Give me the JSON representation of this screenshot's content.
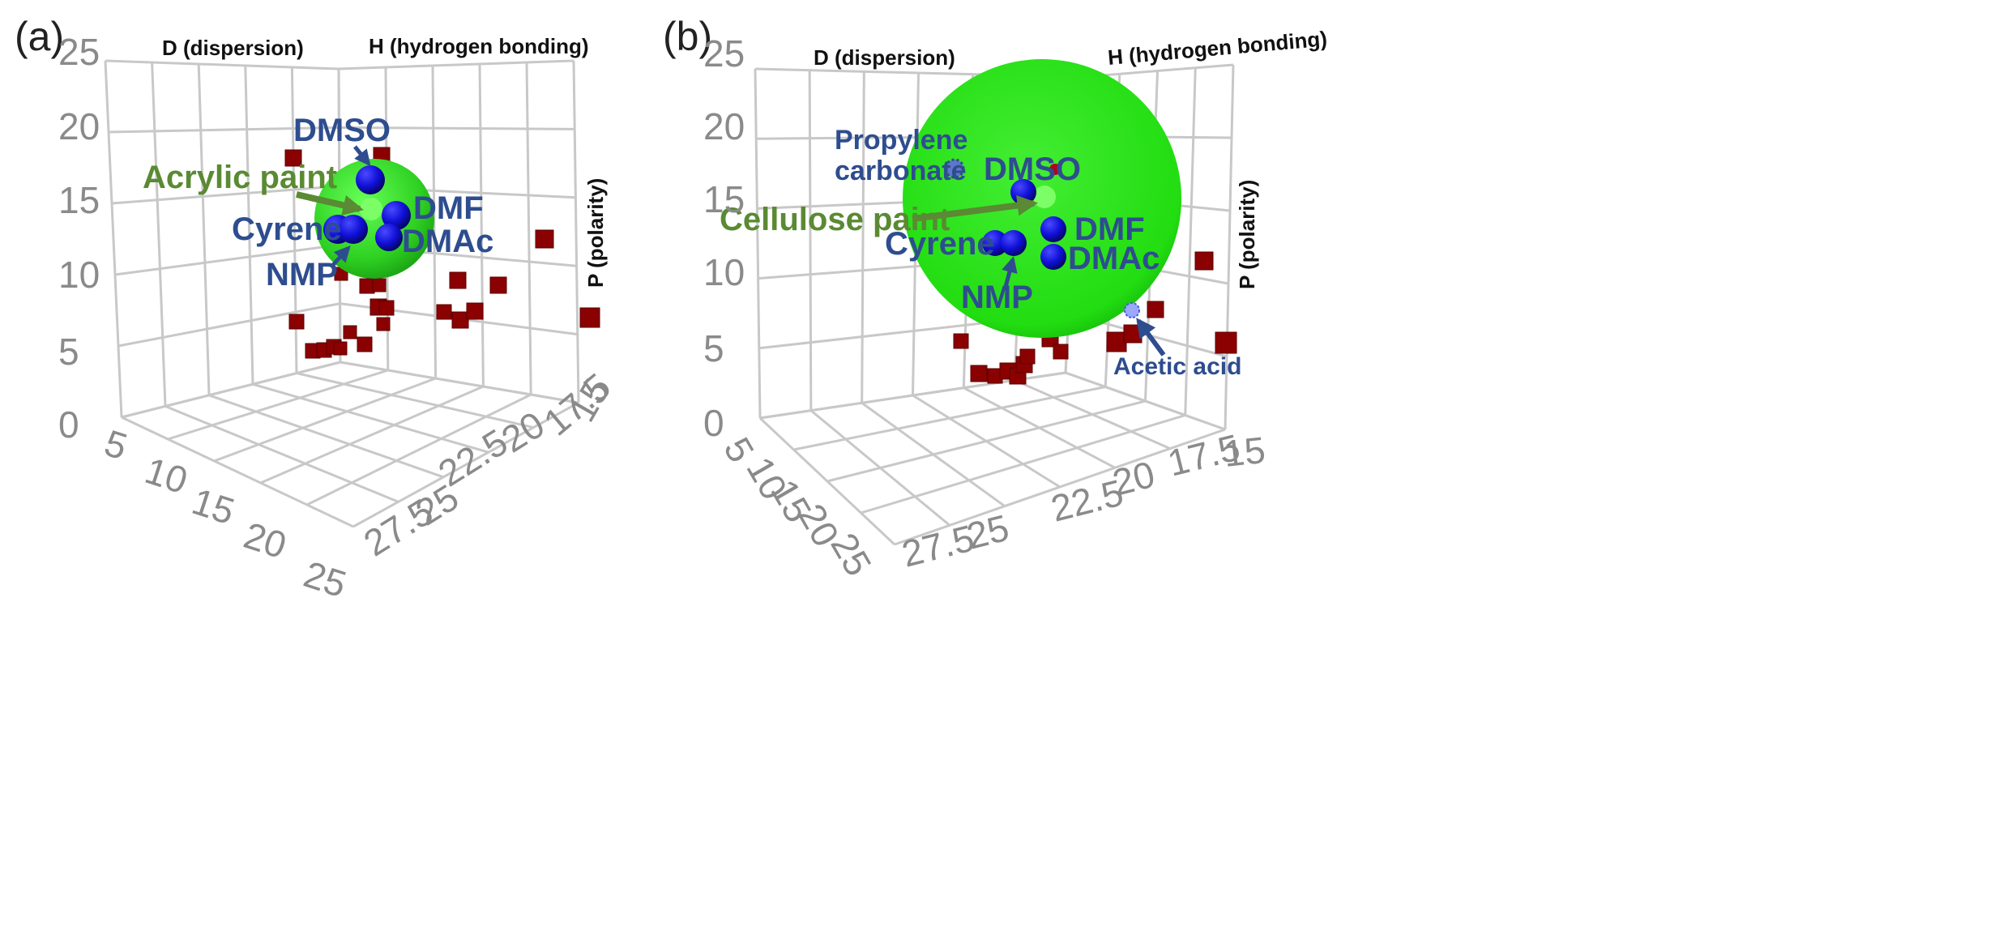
{
  "colors": {
    "grid": "#c8c8c8",
    "solvent_blue": "#1010d8",
    "polymer_red": "#8b0000",
    "sphere_green": "#33dd22",
    "label_blue": "#2e4d8f",
    "label_green": "#5a8a33"
  },
  "chart_data": [
    {
      "type": "scatter",
      "panel_label": "(a)",
      "axes": {
        "vertical_ticks": [
          "0",
          "5",
          "10",
          "15",
          "20",
          "25"
        ],
        "left_floor_ticks": [
          "5",
          "10",
          "15",
          "20",
          "25"
        ],
        "right_floor_ticks": [
          "27.5",
          "25",
          "22.5",
          "20",
          "17.5",
          "15"
        ],
        "axis_names": [
          "D (dispersion)",
          "H (hydrogen bonding)",
          "P (polarity)"
        ]
      },
      "sphere": {
        "name": "Acrylic paint",
        "relative_size": "small"
      },
      "solvents": [
        {
          "name": "DMSO"
        },
        {
          "name": "DMF"
        },
        {
          "name": "DMAc"
        },
        {
          "name": "Cyrene"
        },
        {
          "name": "NMP"
        }
      ],
      "labels": {
        "sphere": "Acrylic paint",
        "dmso": "DMSO",
        "dmf": "DMF",
        "dmac": "DMAc",
        "cyrene": "Cyrene",
        "nmp": "NMP"
      },
      "other_solvents_marker": "red cube"
    },
    {
      "type": "scatter",
      "panel_label": "(b)",
      "axes": {
        "vertical_ticks": [
          "0",
          "5",
          "10",
          "15",
          "20",
          "25"
        ],
        "left_floor_ticks": [
          "5",
          "10",
          "15",
          "20",
          "25"
        ],
        "right_floor_ticks": [
          "27.5",
          "25",
          "22.5",
          "20",
          "17.5",
          "15"
        ],
        "axis_names": [
          "D (dispersion)",
          "H (hydrogen bonding)",
          "P (polarity)"
        ]
      },
      "sphere": {
        "name": "Cellulose paint",
        "relative_size": "large"
      },
      "solvents": [
        {
          "name": "DMSO"
        },
        {
          "name": "DMF"
        },
        {
          "name": "DMAc"
        },
        {
          "name": "Cyrene"
        },
        {
          "name": "NMP"
        },
        {
          "name": "Propylene carbonate"
        },
        {
          "name": "Acetic acid"
        }
      ],
      "labels": {
        "sphere": "Cellulose paint",
        "dmso": "DMSO",
        "dmf": "DMF",
        "dmac": "DMAc",
        "cyrene": "Cyrene",
        "nmp": "NMP",
        "propylene_line1": "Propylene",
        "propylene_line2": "carbonate",
        "acetic": "Acetic acid"
      },
      "other_solvents_marker": "red cube"
    }
  ]
}
